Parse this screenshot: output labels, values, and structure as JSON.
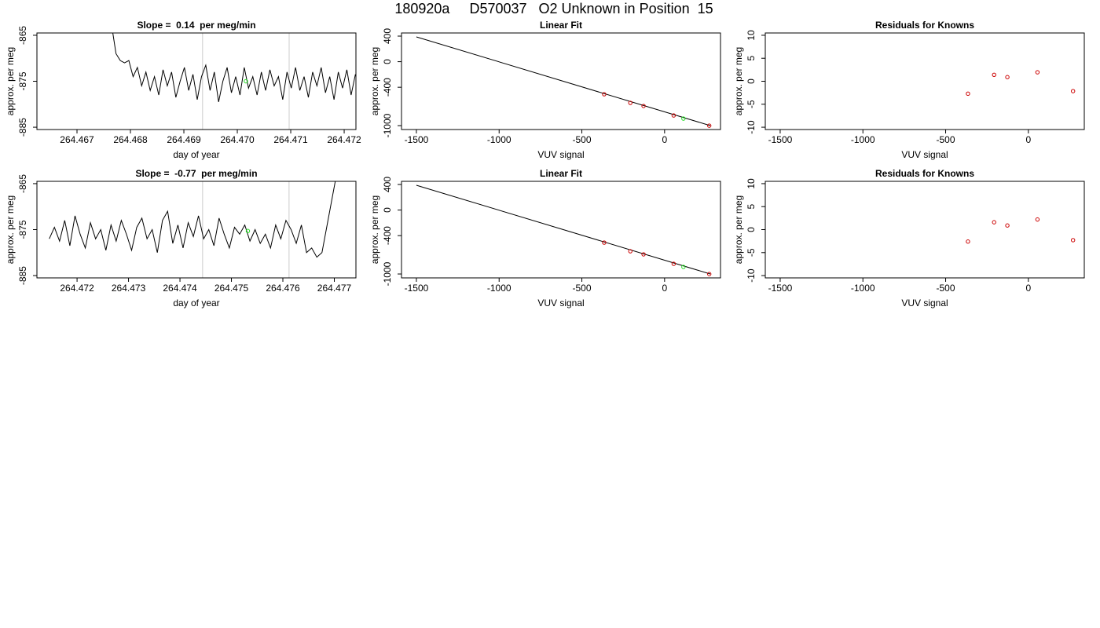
{
  "title": "180920a     D570037   O2 Unknown in Position  15",
  "chart_data": [
    {
      "type": "line",
      "title": "Slope =  0.14  per meg/min",
      "xlabel": "day of year",
      "ylabel": "approx. per meg",
      "xlim": [
        264.46625,
        264.47222
      ],
      "ylim": [
        -885.5,
        -864.5
      ],
      "xticks": [
        264.467,
        264.468,
        264.469,
        {
          "value": 264.47,
          "label": "264.470"
        },
        264.471,
        264.472
      ],
      "yticks": [
        -865,
        -875,
        -885
      ],
      "vlines": [
        264.46935,
        264.47097
      ],
      "vline_color": "#cccccc",
      "series": [
        {
          "mode": "line",
          "color": "#000000",
          "x": [
            264.46765,
            264.46773,
            264.46781,
            264.46789,
            264.46797,
            264.46805,
            264.46813,
            264.46821,
            264.46829,
            264.46837,
            264.46845,
            264.46853,
            264.46861,
            264.46869,
            264.46877,
            264.46885,
            264.46893,
            264.46901,
            264.46909,
            264.46917,
            264.46925,
            264.46933,
            264.46941,
            264.46949,
            264.46957,
            264.46965,
            264.46973,
            264.46981,
            264.46989,
            264.46997,
            264.47005,
            264.47013,
            264.47021,
            264.47029,
            264.47037,
            264.47045,
            264.47053,
            264.47061,
            264.47069,
            264.47077,
            264.47085,
            264.47093,
            264.47101,
            264.47109,
            264.47117,
            264.47125,
            264.47133,
            264.47141,
            264.47149,
            264.47157,
            264.47165,
            264.47173,
            264.47181,
            264.47189,
            264.47197,
            264.47205,
            264.47213,
            264.47221
          ],
          "values": [
            -863,
            -869,
            -870.5,
            -871,
            -870.5,
            -874,
            -872,
            -876,
            -873,
            -877,
            -874,
            -878,
            -872.5,
            -876,
            -873,
            -878.5,
            -875,
            -872,
            -877,
            -873.5,
            -879,
            -874,
            -871.5,
            -877,
            -873,
            -879.5,
            -875,
            -872,
            -877.5,
            -874,
            -878,
            -872,
            -876.5,
            -874,
            -878,
            -873,
            -877,
            -872.5,
            -876,
            -874,
            -879,
            -873,
            -876.5,
            -872,
            -877,
            -874,
            -878.5,
            -873,
            -876,
            -872,
            -877.5,
            -874,
            -879,
            -873,
            -876.5,
            -872.5,
            -878,
            -873.5
          ]
        },
        {
          "mode": "points",
          "color": "#22dd22",
          "x": [
            264.47016
          ],
          "values": [
            -875
          ]
        }
      ]
    },
    {
      "type": "scatter",
      "title": "Linear Fit",
      "xlabel": "VUV signal",
      "ylabel": "approx. per meg",
      "xlim": [
        -1590,
        338
      ],
      "ylim": [
        -1061,
        449
      ],
      "xticks": [
        -1500,
        -1000,
        -500,
        0
      ],
      "yticks": [
        400,
        0,
        -400,
        -1000
      ],
      "series": [
        {
          "mode": "line",
          "color": "#000000",
          "x": [
            -1500,
            276
          ],
          "values": [
            388,
            -1000
          ]
        },
        {
          "mode": "points",
          "color": "#cc0000",
          "x": [
            -365,
            -207,
            -127,
            55,
            270
          ],
          "values": [
            -509,
            -644,
            -693,
            -841,
            -1001
          ]
        },
        {
          "mode": "points",
          "color": "#22dd22",
          "x": [
            114
          ],
          "values": [
            -890
          ]
        }
      ]
    },
    {
      "type": "scatter",
      "title": "Residuals for Knowns",
      "xlabel": "VUV signal",
      "ylabel": "approx. per meg",
      "xlim": [
        -1590,
        338
      ],
      "ylim": [
        -10.5,
        10.5
      ],
      "xticks": [
        -1500,
        -1000,
        -500,
        0
      ],
      "yticks": [
        10,
        5,
        0,
        -5,
        -10
      ],
      "series": [
        {
          "mode": "points",
          "color": "#cc0000",
          "x": [
            -365,
            -207,
            -127,
            55,
            270
          ],
          "values": [
            -2.7,
            1.4,
            0.9,
            1.95,
            -2.15
          ]
        }
      ]
    },
    {
      "type": "line",
      "title": "Slope =  -0.77  per meg/min",
      "xlabel": "day of year",
      "ylabel": "approx. per meg",
      "xlim": [
        264.47122,
        264.47742
      ],
      "ylim": [
        -885.5,
        -864.5
      ],
      "xticks": [
        264.472,
        264.473,
        264.474,
        264.475,
        264.476,
        264.477
      ],
      "yticks": [
        -865,
        -875,
        -885
      ],
      "vlines": [
        264.47444,
        264.47612
      ],
      "vline_color": "#cccccc",
      "series": [
        {
          "mode": "line",
          "color": "#000000",
          "x": [
            264.47146,
            264.47156,
            264.47166,
            264.47176,
            264.47186,
            264.47196,
            264.47206,
            264.47216,
            264.47226,
            264.47236,
            264.47246,
            264.47256,
            264.47266,
            264.47276,
            264.47286,
            264.47296,
            264.47306,
            264.47316,
            264.47326,
            264.47336,
            264.47346,
            264.47356,
            264.47366,
            264.47376,
            264.47386,
            264.47396,
            264.47406,
            264.47416,
            264.47426,
            264.47436,
            264.47446,
            264.47456,
            264.47466,
            264.47476,
            264.47486,
            264.47496,
            264.47506,
            264.47516,
            264.47526,
            264.47536,
            264.47546,
            264.47556,
            264.47566,
            264.47576,
            264.47586,
            264.47596,
            264.47606,
            264.47616,
            264.47626,
            264.47636,
            264.47646,
            264.47656,
            264.47666,
            264.47676,
            264.47686,
            264.47696,
            264.47706
          ],
          "values": [
            -877,
            -874.5,
            -877.5,
            -873,
            -878.5,
            -872,
            -876,
            -879,
            -873.5,
            -877,
            -875,
            -879.5,
            -874,
            -877.5,
            -873,
            -876,
            -879.5,
            -874.5,
            -872.5,
            -877,
            -875,
            -880,
            -873,
            -871,
            -878,
            -874,
            -879,
            -873.5,
            -876.5,
            -872,
            -877,
            -875,
            -878.5,
            -872.5,
            -876,
            -879,
            -874.5,
            -876,
            -874,
            -877.5,
            -875,
            -878,
            -876,
            -879,
            -874,
            -877,
            -873,
            -875,
            -878,
            -874,
            -880,
            -879,
            -881,
            -880,
            -874,
            -868,
            -862
          ]
        },
        {
          "mode": "points",
          "color": "#22dd22",
          "x": [
            264.47532
          ],
          "values": [
            -875.3
          ]
        }
      ]
    },
    {
      "type": "scatter",
      "title": "Linear Fit",
      "xlabel": "VUV signal",
      "ylabel": "approx. per meg",
      "xlim": [
        -1590,
        338
      ],
      "ylim": [
        -1061,
        449
      ],
      "xticks": [
        -1500,
        -1000,
        -500,
        0
      ],
      "yticks": [
        400,
        0,
        -400,
        -1000
      ],
      "series": [
        {
          "mode": "line",
          "color": "#000000",
          "x": [
            -1500,
            276
          ],
          "values": [
            388,
            -1000
          ]
        },
        {
          "mode": "points",
          "color": "#cc0000",
          "x": [
            -365,
            -207,
            -127,
            55,
            270
          ],
          "values": [
            -509,
            -644,
            -693,
            -841,
            -1001
          ]
        },
        {
          "mode": "points",
          "color": "#22dd22",
          "x": [
            114
          ],
          "values": [
            -890
          ]
        }
      ]
    },
    {
      "type": "scatter",
      "title": "Residuals for Knowns",
      "xlabel": "VUV signal",
      "ylabel": "approx. per meg",
      "xlim": [
        -1590,
        338
      ],
      "ylim": [
        -10.5,
        10.5
      ],
      "xticks": [
        -1500,
        -1000,
        -500,
        0
      ],
      "yticks": [
        10,
        5,
        0,
        -5,
        -10
      ],
      "series": [
        {
          "mode": "points",
          "color": "#cc0000",
          "x": [
            -365,
            -207,
            -127,
            55,
            270
          ],
          "values": [
            -2.6,
            1.6,
            0.9,
            2.2,
            -2.3
          ]
        }
      ]
    }
  ]
}
